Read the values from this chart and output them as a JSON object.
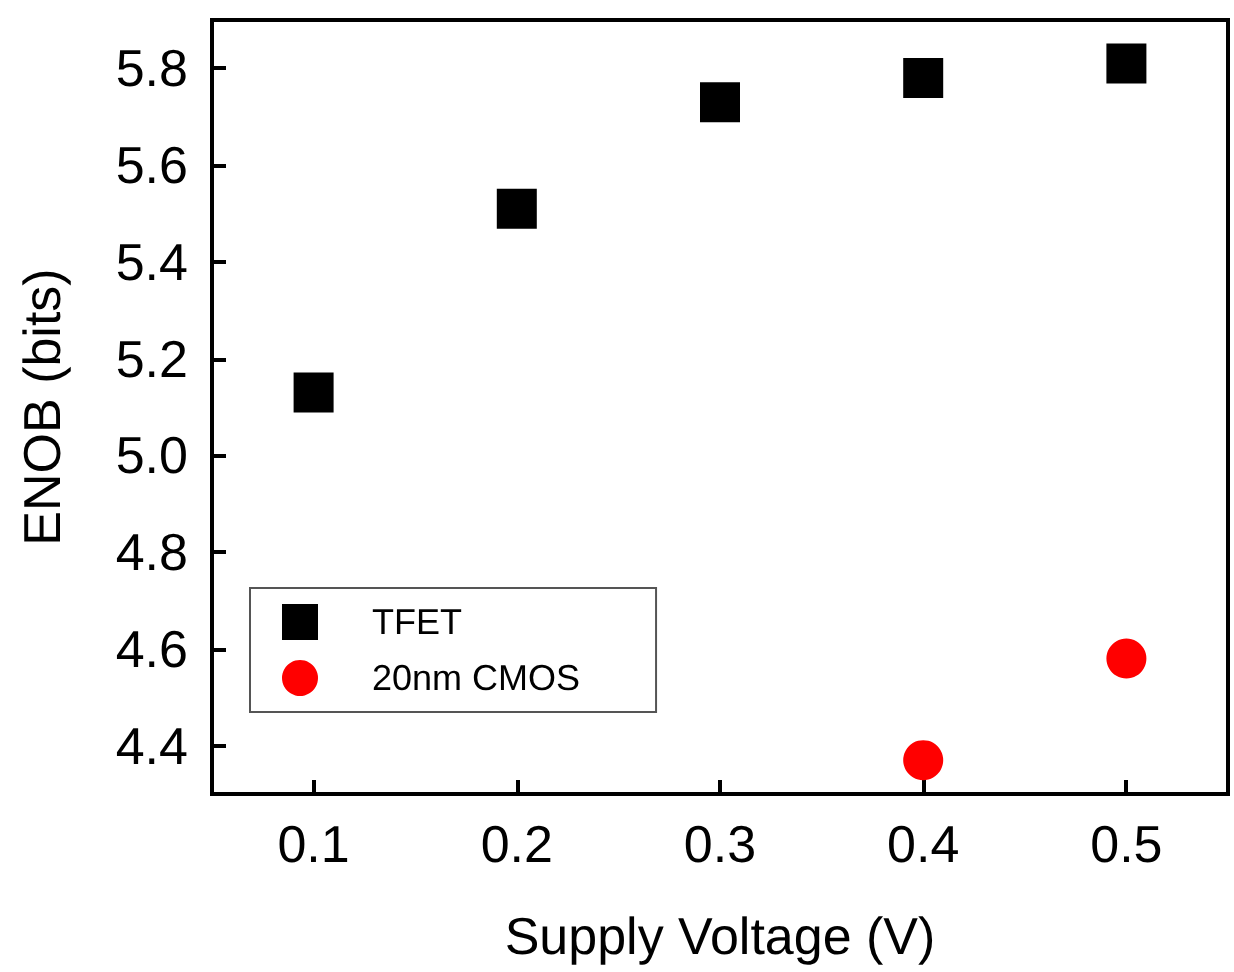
{
  "chart_data": {
    "type": "scatter",
    "xlabel": "Supply Voltage (V)",
    "ylabel": "ENOB (bits)",
    "xlim": [
      0.05,
      0.55
    ],
    "xticks": [
      0.1,
      0.2,
      0.3,
      0.4,
      0.5
    ],
    "ylim": [
      4.3,
      5.9
    ],
    "yticks": [
      4.4,
      4.6,
      4.8,
      {
        "value": 5,
        "label": "5.0"
      },
      5.2,
      5.4,
      5.6,
      5.8
    ],
    "grid": false,
    "legend": "bottom left",
    "series": [
      {
        "name": "TFET",
        "color": "#000000",
        "marker": "square",
        "x": [
          0.1,
          0.2,
          0.3,
          0.4,
          0.5
        ],
        "values": [
          5.13,
          5.51,
          5.73,
          5.78,
          5.81
        ]
      },
      {
        "name": "20nm CMOS",
        "color": "#ff0000",
        "marker": "circle",
        "x": [
          0.4,
          0.5
        ],
        "values": [
          4.37,
          4.58
        ]
      }
    ]
  }
}
